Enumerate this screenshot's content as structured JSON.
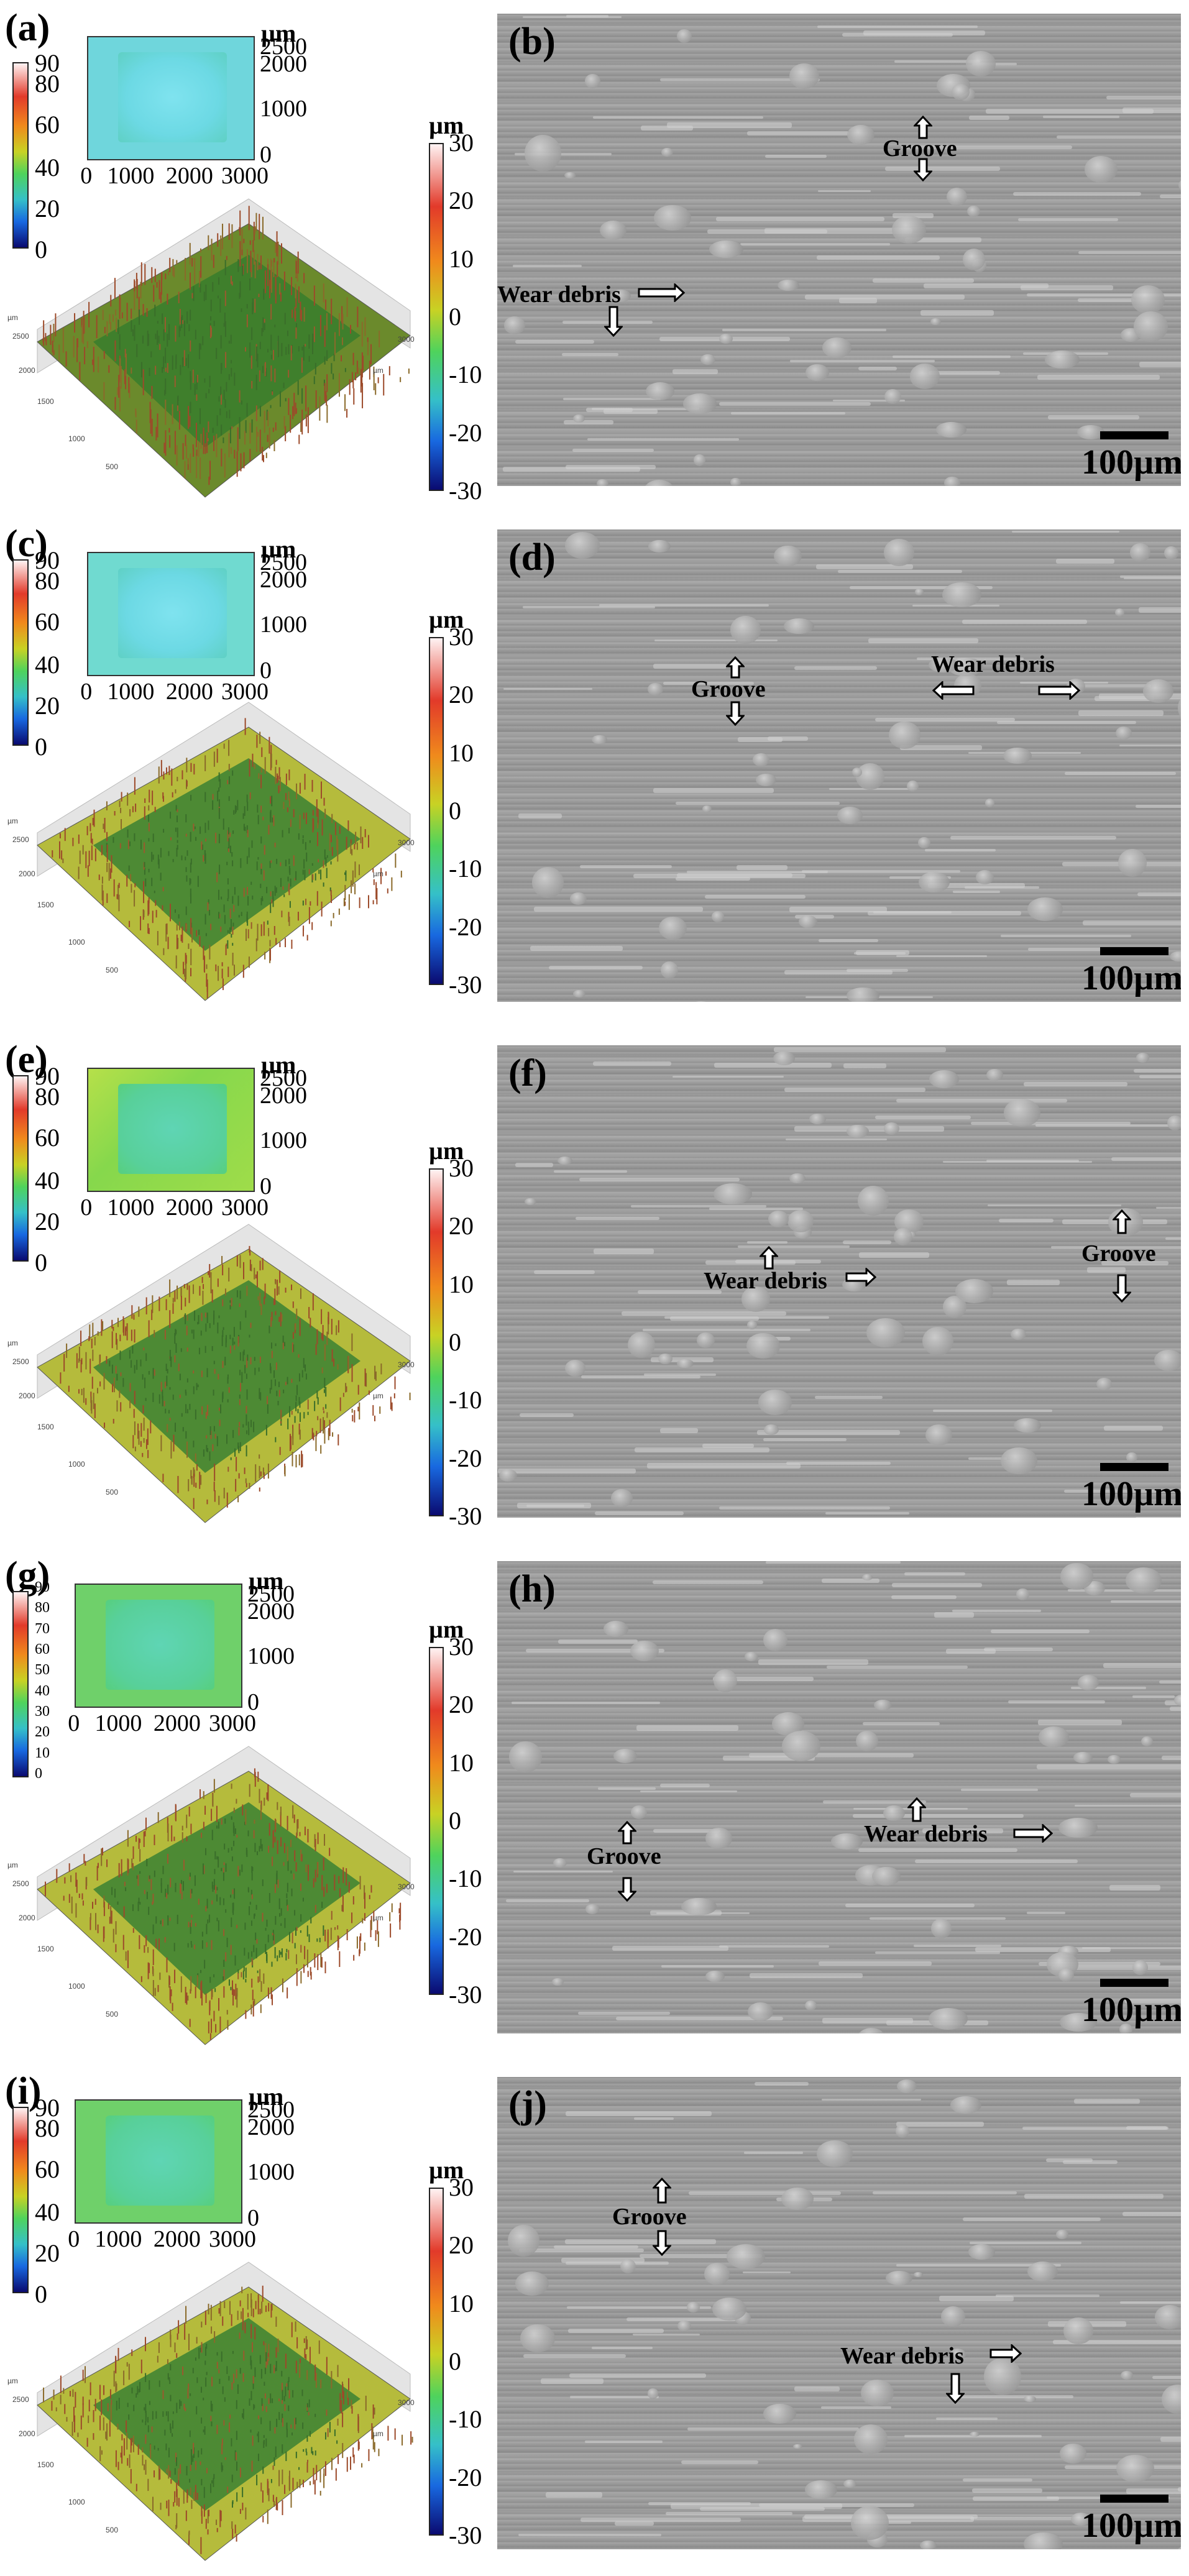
{
  "unit_label": "µm",
  "cbar_small_ticks": [
    "90",
    "80",
    "60",
    "40",
    "20",
    "0"
  ],
  "cbar_small_ticks_g": [
    "90",
    "80",
    "70",
    "60",
    "50",
    "40",
    "30",
    "20",
    "10",
    "0"
  ],
  "cbar_big_ticks": [
    "30",
    "20",
    "10",
    "0",
    "-10",
    "-20",
    "-30"
  ],
  "map_y_ticks": [
    "2500",
    "2000",
    "1000",
    "0"
  ],
  "map_x_ticks": [
    "0",
    "1000",
    "2000",
    "3000"
  ],
  "map_x_ticks_a": [
    "0",
    "1000",
    "2000",
    "3000"
  ],
  "scale_label": "100µm",
  "groove_label": "Groove",
  "wear_debris_label": "Wear debris",
  "colors": {
    "surface_green": "#4f8f2f",
    "surface_red": "#a5412a",
    "surface_yellow": "#c6c84a",
    "sem_gray": "#9a9a9a"
  },
  "panels": [
    {
      "left_label": "(a)",
      "right_label": "(b)"
    },
    {
      "left_label": "(c)",
      "right_label": "(d)"
    },
    {
      "left_label": "(e)",
      "right_label": "(f)"
    },
    {
      "left_label": "(g)",
      "right_label": "(h)"
    },
    {
      "left_label": "(i)",
      "right_label": "(j)"
    }
  ],
  "surface_axis_labels": [
    "µm",
    "2500",
    "2000",
    "1500",
    "1000",
    "500",
    "3000",
    "µm"
  ]
}
